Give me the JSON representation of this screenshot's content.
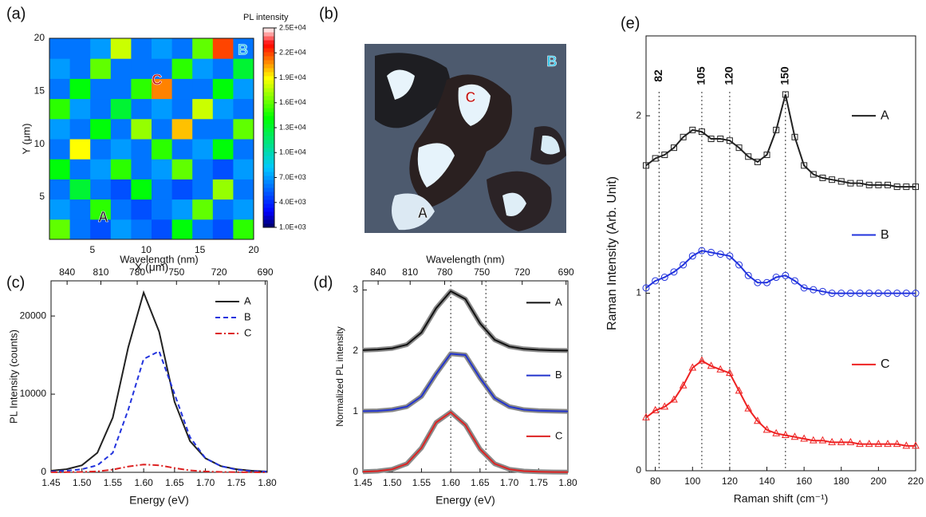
{
  "chart_data": [
    {
      "type": "heatmap",
      "panel_label": "(a)",
      "xlabel": "X (μm)",
      "ylabel": "Y (μm)",
      "xlim": [
        1,
        20
      ],
      "ylim": [
        1,
        20
      ],
      "xticks": [
        5,
        10,
        15,
        20
      ],
      "yticks": [
        5,
        10,
        15,
        20
      ],
      "colorbar_title": "PL intensity",
      "clim": [
        1000,
        25000
      ],
      "cticks": [
        {
          "value": 1000,
          "label": "1.0E+03"
        },
        {
          "value": 4000,
          "label": "4.0E+03"
        },
        {
          "value": 7000,
          "label": "7.0E+03"
        },
        {
          "value": 10000,
          "label": "1.0E+04"
        },
        {
          "value": 13000,
          "label": "1.3E+04"
        },
        {
          "value": 16000,
          "label": "1.6E+04"
        },
        {
          "value": 19000,
          "label": "1.9E+04"
        },
        {
          "value": 22000,
          "label": "2.2E+04"
        },
        {
          "value": 25000,
          "label": "2.5E+04"
        }
      ],
      "z": [
        [
          16000,
          6000,
          5000,
          7000,
          6000,
          5000,
          14000,
          6000,
          5000,
          15000
        ],
        [
          7000,
          6000,
          15000,
          6000,
          5000,
          6000,
          7000,
          16000,
          6000,
          7000
        ],
        [
          6000,
          13000,
          6000,
          5000,
          14000,
          6000,
          5000,
          6000,
          17000,
          6000
        ],
        [
          14000,
          6000,
          7000,
          15000,
          6000,
          7000,
          16000,
          6000,
          5000,
          7000
        ],
        [
          6000,
          19000,
          6000,
          7000,
          6000,
          15000,
          6000,
          7000,
          14000,
          6000
        ],
        [
          7000,
          6000,
          14000,
          6000,
          17000,
          6000,
          20000,
          6000,
          6000,
          16000
        ],
        [
          15000,
          7000,
          6000,
          13000,
          6000,
          7000,
          6000,
          18000,
          7000,
          6000
        ],
        [
          6000,
          14000,
          6000,
          6000,
          15000,
          21000,
          6000,
          6000,
          14000,
          7000
        ],
        [
          7000,
          6000,
          16000,
          6000,
          6000,
          6000,
          15000,
          7000,
          6000,
          13000
        ],
        [
          6000,
          6000,
          7000,
          18000,
          6000,
          7000,
          6000,
          16000,
          22000,
          6000
        ]
      ],
      "points": [
        {
          "label": "A",
          "x": 6,
          "y": 3
        },
        {
          "label": "B",
          "x": 19,
          "y": 18.8
        },
        {
          "label": "C",
          "x": 11,
          "y": 16
        }
      ]
    },
    {
      "type": "image",
      "panel_label": "(b)",
      "labels": [
        "A",
        "B",
        "C"
      ]
    },
    {
      "type": "line",
      "panel_label": "(c)",
      "xlabel": "Energy (eV)",
      "ylabel": "PL Intensity (counts)",
      "x2label": "Wavelength (nm)",
      "xlim": [
        1.45,
        1.8
      ],
      "ylim": [
        0,
        24500
      ],
      "xticks": [
        1.45,
        {
          "value": 1.5,
          "label": "1.50"
        },
        1.55,
        {
          "value": 1.6,
          "label": "1.60"
        },
        1.65,
        {
          "value": 1.7,
          "label": "1.70"
        },
        1.75,
        {
          "value": 1.8,
          "label": "1.80"
        }
      ],
      "yticks": [
        0,
        10000,
        20000
      ],
      "x2ticks": [
        840,
        810,
        780,
        750,
        720,
        690
      ],
      "legend": "upper right",
      "x": [
        1.45,
        1.475,
        1.5,
        1.525,
        1.55,
        1.575,
        1.6,
        1.625,
        1.65,
        1.675,
        1.7,
        1.725,
        1.75,
        1.775,
        1.8
      ],
      "series": [
        {
          "name": "A",
          "color": "#222222",
          "dash": "solid",
          "values": [
            200,
            400,
            900,
            2500,
            7000,
            16000,
            23000,
            18000,
            9000,
            4000,
            1800,
            800,
            400,
            200,
            100
          ]
        },
        {
          "name": "B",
          "color": "#2233dd",
          "dash": "dashed",
          "values": [
            100,
            200,
            400,
            900,
            2500,
            8000,
            14500,
            15500,
            10000,
            4500,
            1800,
            800,
            350,
            150,
            80
          ]
        },
        {
          "name": "C",
          "color": "#dd2222",
          "dash": "dashdot",
          "values": [
            10,
            20,
            50,
            120,
            350,
            750,
            1000,
            900,
            550,
            250,
            110,
            50,
            20,
            10,
            5
          ]
        }
      ]
    },
    {
      "type": "line",
      "panel_label": "(d)",
      "xlabel": "Energy (eV)",
      "ylabel": "Normalized PL intensity",
      "x2label": "Wavelength (nm)",
      "xlim": [
        1.45,
        1.8
      ],
      "ylim": [
        0,
        3.15
      ],
      "xticks": [
        1.45,
        {
          "value": 1.5,
          "label": "1.50"
        },
        1.55,
        {
          "value": 1.6,
          "label": "1.60"
        },
        1.65,
        {
          "value": 1.7,
          "label": "1.70"
        },
        1.75,
        {
          "value": 1.8,
          "label": "1.80"
        }
      ],
      "yticks": [
        0,
        1,
        2,
        3
      ],
      "x2ticks": [
        840,
        810,
        780,
        750,
        720,
        690
      ],
      "vlines": [
        1.6,
        1.66
      ],
      "legend": "right",
      "halo_color": "#8a8a8a",
      "x": [
        1.45,
        1.475,
        1.5,
        1.525,
        1.55,
        1.575,
        1.6,
        1.625,
        1.65,
        1.675,
        1.7,
        1.725,
        1.75,
        1.775,
        1.8
      ],
      "series": [
        {
          "name": "A",
          "color": "#111111",
          "dash": "solid",
          "values": [
            2.01,
            2.02,
            2.04,
            2.1,
            2.3,
            2.7,
            2.98,
            2.85,
            2.45,
            2.18,
            2.07,
            2.03,
            2.015,
            2.007,
            2.003
          ]
        },
        {
          "name": "B",
          "color": "#2233cc",
          "dash": "solid",
          "values": [
            1.005,
            1.01,
            1.03,
            1.08,
            1.25,
            1.62,
            1.95,
            1.93,
            1.55,
            1.22,
            1.08,
            1.03,
            1.015,
            1.007,
            1.003
          ]
        },
        {
          "name": "C",
          "color": "#dd2222",
          "dash": "solid",
          "values": [
            0.01,
            0.02,
            0.05,
            0.14,
            0.4,
            0.82,
            0.99,
            0.78,
            0.38,
            0.14,
            0.05,
            0.02,
            0.01,
            0.005,
            0.002
          ]
        }
      ]
    },
    {
      "type": "line",
      "panel_label": "(e)",
      "xlabel": "Raman shift (cm⁻¹)",
      "ylabel": "Raman Intensity (Arb. Unit)",
      "xlim": [
        75,
        220
      ],
      "ylim": [
        0,
        2.45
      ],
      "xticks": [
        80,
        100,
        120,
        140,
        160,
        180,
        200,
        220
      ],
      "yticks": [
        0,
        1,
        2
      ],
      "vlines": [
        82,
        105,
        120,
        150
      ],
      "vline_labels": true,
      "legend": "right",
      "x": [
        75,
        80,
        85,
        90,
        95,
        100,
        105,
        110,
        115,
        120,
        125,
        130,
        135,
        140,
        145,
        150,
        155,
        160,
        165,
        170,
        175,
        180,
        185,
        190,
        195,
        200,
        205,
        210,
        215,
        220
      ],
      "series": [
        {
          "name": "A",
          "color": "#222222",
          "marker": "square",
          "values": [
            1.72,
            1.76,
            1.78,
            1.82,
            1.88,
            1.92,
            1.91,
            1.87,
            1.87,
            1.86,
            1.82,
            1.77,
            1.74,
            1.78,
            1.92,
            2.12,
            1.88,
            1.72,
            1.67,
            1.65,
            1.64,
            1.63,
            1.62,
            1.62,
            1.61,
            1.61,
            1.61,
            1.6,
            1.6,
            1.6
          ]
        },
        {
          "name": "B",
          "color": "#2233dd",
          "marker": "circle",
          "values": [
            1.03,
            1.07,
            1.09,
            1.12,
            1.16,
            1.21,
            1.24,
            1.23,
            1.22,
            1.21,
            1.16,
            1.1,
            1.06,
            1.06,
            1.09,
            1.1,
            1.07,
            1.03,
            1.02,
            1.01,
            1.0,
            1.0,
            1.0,
            1.0,
            1.0,
            1.0,
            1.0,
            1.0,
            1.0,
            1.0
          ]
        },
        {
          "name": "C",
          "color": "#ee2222",
          "marker": "triangle",
          "values": [
            0.3,
            0.34,
            0.36,
            0.4,
            0.48,
            0.58,
            0.62,
            0.59,
            0.57,
            0.55,
            0.45,
            0.35,
            0.28,
            0.23,
            0.21,
            0.2,
            0.19,
            0.18,
            0.17,
            0.17,
            0.16,
            0.16,
            0.16,
            0.15,
            0.15,
            0.15,
            0.15,
            0.15,
            0.14,
            0.14
          ]
        }
      ]
    }
  ]
}
